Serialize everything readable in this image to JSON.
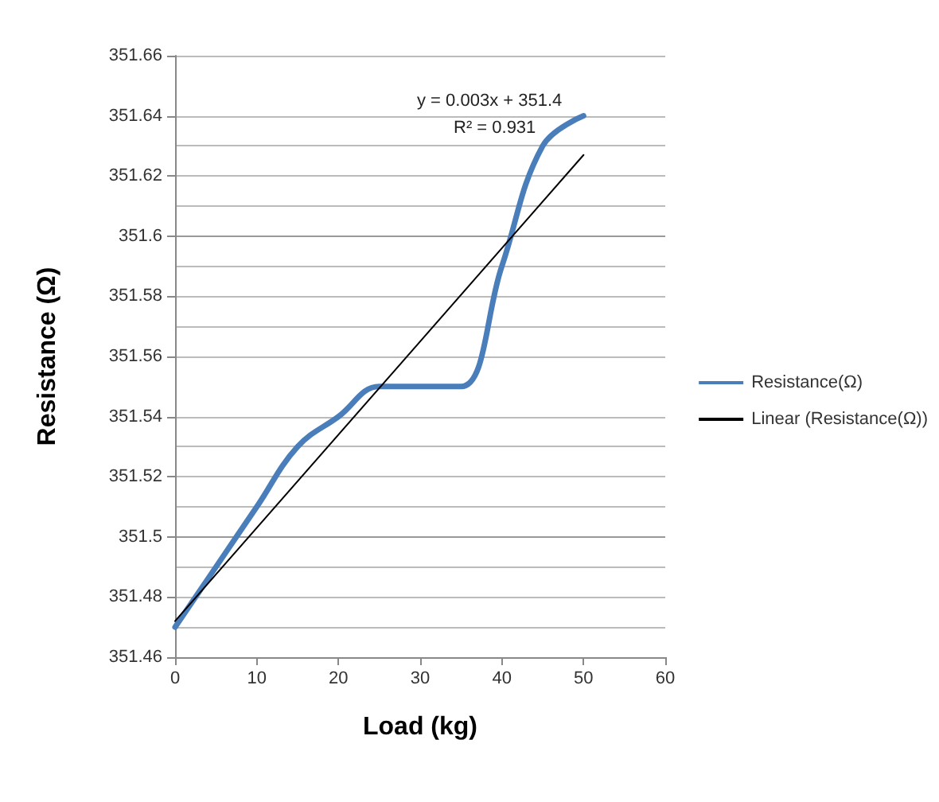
{
  "chart_data": {
    "type": "line",
    "xlabel": "Load (kg)",
    "ylabel": "Resistance (Ω)",
    "xlim": [
      0,
      60
    ],
    "xticks": [
      0,
      10,
      20,
      30,
      40,
      50,
      60
    ],
    "ylim": [
      351.46,
      351.66
    ],
    "yticks": [
      {
        "value": 351.46,
        "label": "351.46"
      },
      {
        "value": 351.48,
        "label": "351.48"
      },
      {
        "value": 351.5,
        "label": "351.5"
      },
      {
        "value": 351.52,
        "label": "351.52"
      },
      {
        "value": 351.54,
        "label": "351.54"
      },
      {
        "value": 351.56,
        "label": "351.56"
      },
      {
        "value": 351.58,
        "label": "351.58"
      },
      {
        "value": 351.6,
        "label": "351.6"
      },
      {
        "value": 351.62,
        "label": "351.62"
      },
      {
        "value": 351.64,
        "label": "351.64"
      },
      {
        "value": 351.66,
        "label": "351.66"
      }
    ],
    "x": [
      0,
      5,
      10,
      15,
      20,
      25,
      30,
      35,
      40,
      45,
      50
    ],
    "series": [
      {
        "name": "Resistance(Ω)",
        "color": "#4a7ebb",
        "values": [
          351.47,
          351.49,
          351.51,
          351.53,
          351.54,
          351.55,
          351.55,
          351.55,
          351.59,
          351.63,
          351.64
        ]
      },
      {
        "name": "Linear (Resistance(Ω))",
        "color": "#000000",
        "x": [
          0,
          50
        ],
        "values": [
          351.472,
          351.627
        ]
      }
    ],
    "annotations": [
      "y = 0.003x + 351.4",
      "R² = 0.931"
    ],
    "grid": "y",
    "legend": "right",
    "marker": "none",
    "line_style": "solid"
  }
}
